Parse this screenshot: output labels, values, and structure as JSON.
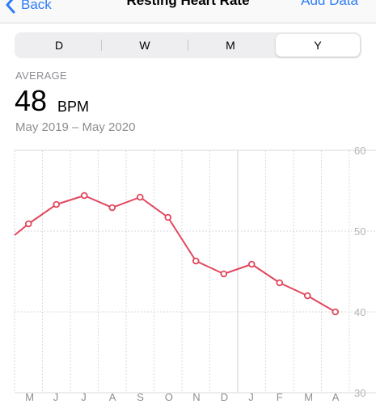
{
  "nav": {
    "back_label": "Back",
    "title": "Resting Heart Rate",
    "add_label": "Add Data"
  },
  "segments": [
    "D",
    "W",
    "M",
    "Y"
  ],
  "selected_segment": "Y",
  "summary": {
    "label": "AVERAGE",
    "value": "48",
    "unit": "BPM",
    "range": "May 2019 – May 2020"
  },
  "colors": {
    "accent": "#2f7cf6",
    "line": "#e0475d"
  },
  "chart_data": {
    "type": "line",
    "categories": [
      "M",
      "J",
      "J",
      "A",
      "S",
      "O",
      "N",
      "D",
      "J",
      "F",
      "M",
      "A"
    ],
    "x": [
      "May",
      "Jun",
      "Jul",
      "Aug",
      "Sep",
      "Oct",
      "Nov",
      "Dec",
      "Jan",
      "Feb",
      "Mar",
      "Apr"
    ],
    "values": [
      50.9,
      53.3,
      54.4,
      52.9,
      54.2,
      51.7,
      46.3,
      44.7,
      45.9,
      43.6,
      42.0,
      40.0
    ],
    "ylim": [
      30,
      60
    ],
    "yticks": [
      30,
      40,
      50,
      60
    ],
    "grid": true,
    "xlabel": "",
    "ylabel": ""
  }
}
